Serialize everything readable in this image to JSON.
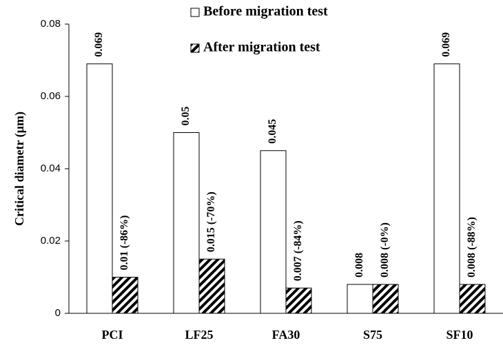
{
  "chart_data": {
    "type": "bar",
    "y_label": "Critical diametr (µm)",
    "categories": [
      "PCI",
      "LF25",
      "FA30",
      "S75",
      "SF10"
    ],
    "series": [
      {
        "name": "Before migration test",
        "color": "#ffffff",
        "values": [
          0.069,
          0.05,
          0.045,
          0.008,
          0.069
        ]
      },
      {
        "name": "After migration test",
        "color": "#000000",
        "hatch": true,
        "values": [
          0.01,
          0.015,
          0.007,
          0.008,
          0.008
        ],
        "value_labels": [
          "0.01 (-86%)",
          "0.015 (-70%)",
          "0.007 (-84%)",
          "0.008 (-0%)",
          "0.008 (-88%)"
        ]
      }
    ],
    "ylim": [
      0,
      0.08
    ],
    "yticks": [
      0,
      0.02,
      0.04,
      0.06,
      0.08
    ],
    "legend": "top"
  }
}
